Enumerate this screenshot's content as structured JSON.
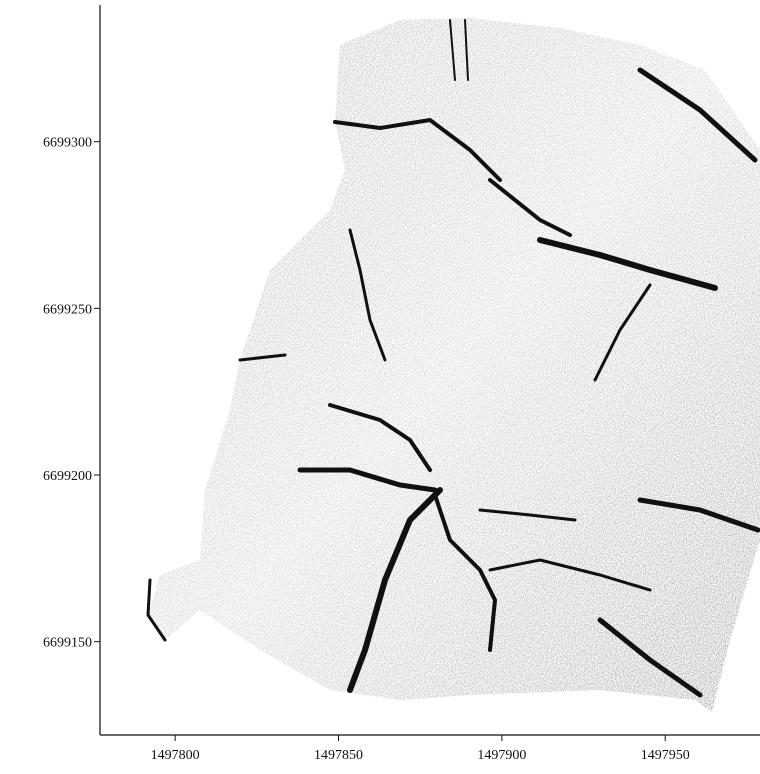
{
  "chart_data": {
    "type": "raster-map",
    "xlim": [
      1497777,
      1497979
    ],
    "xticks": [
      1497800,
      1497850,
      1497900,
      1497950
    ],
    "ylim": [
      6699122,
      6699341
    ],
    "yticks": [
      6699150,
      6699200,
      6699250,
      6699300
    ]
  }
}
